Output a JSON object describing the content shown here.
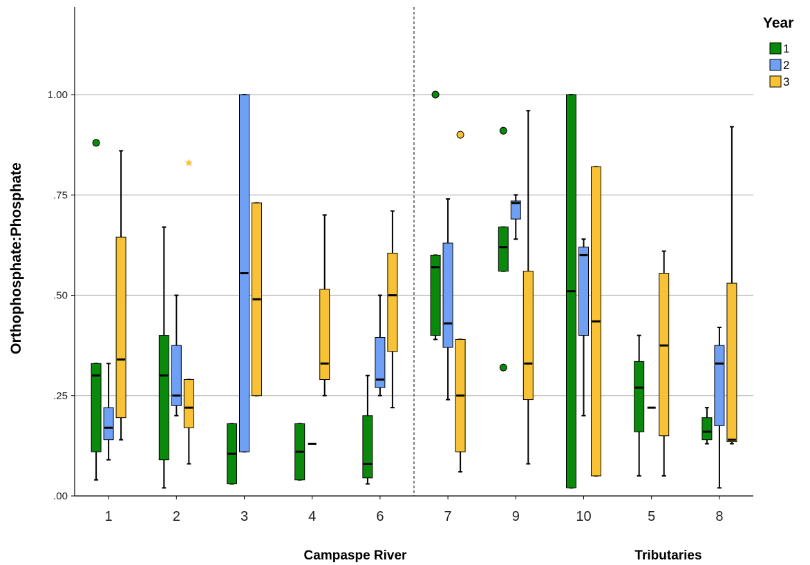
{
  "chart_data": {
    "type": "boxplot",
    "ylabel": "Orthophosphate:Phosphate",
    "ylim": [
      0,
      1.2
    ],
    "yticks": [
      0,
      0.25,
      0.5,
      0.75,
      1.0
    ],
    "ytick_labels": [
      ".00",
      ".25",
      ".50",
      ".75",
      "1.00"
    ],
    "grid": "horizontal",
    "categories": [
      "1",
      "2",
      "3",
      "4",
      "6",
      "7",
      "9",
      "10",
      "5",
      "8"
    ],
    "groups": [
      {
        "label": "Campaspe River",
        "categories": [
          "1",
          "2",
          "3",
          "4",
          "6"
        ]
      },
      {
        "label": "Tributaries",
        "categories": [
          "7",
          "9",
          "10",
          "5",
          "8"
        ]
      }
    ],
    "legend": {
      "title": "Year",
      "position": "top-right",
      "entries": [
        "1",
        "2",
        "3"
      ]
    },
    "colors": {
      "1": "#0a8a0a",
      "2": "#6fa0f5",
      "3": "#f7c236"
    },
    "series": [
      {
        "name": "1",
        "boxes": [
          {
            "category": "1",
            "whislo": 0.04,
            "q1": 0.11,
            "med": 0.3,
            "q3": 0.33,
            "whishi": 0.33,
            "outliers": [
              0.88
            ],
            "extremes": []
          },
          {
            "category": "2",
            "whislo": 0.02,
            "q1": 0.09,
            "med": 0.3,
            "q3": 0.4,
            "whishi": 0.67,
            "outliers": [],
            "extremes": []
          },
          {
            "category": "3",
            "whislo": 0.03,
            "q1": 0.03,
            "med": 0.105,
            "q3": 0.18,
            "whishi": 0.18,
            "outliers": [],
            "extremes": []
          },
          {
            "category": "4",
            "whislo": 0.04,
            "q1": 0.04,
            "med": 0.11,
            "q3": 0.18,
            "whishi": 0.18,
            "outliers": [],
            "extremes": []
          },
          {
            "category": "6",
            "whislo": 0.03,
            "q1": 0.045,
            "med": 0.08,
            "q3": 0.2,
            "whishi": 0.3,
            "outliers": [],
            "extremes": []
          },
          {
            "category": "7",
            "whislo": 0.39,
            "q1": 0.4,
            "med": 0.57,
            "q3": 0.6,
            "whishi": 0.6,
            "outliers": [
              1.0
            ],
            "extremes": []
          },
          {
            "category": "9",
            "whislo": 0.56,
            "q1": 0.56,
            "med": 0.62,
            "q3": 0.67,
            "whishi": 0.67,
            "outliers": [
              0.91,
              0.32
            ],
            "extremes": []
          },
          {
            "category": "10",
            "whislo": 0.02,
            "q1": 0.02,
            "med": 0.51,
            "q3": 1.0,
            "whishi": 1.0,
            "outliers": [],
            "extremes": []
          },
          {
            "category": "5",
            "whislo": 0.05,
            "q1": 0.16,
            "med": 0.27,
            "q3": 0.335,
            "whishi": 0.4,
            "outliers": [],
            "extremes": []
          },
          {
            "category": "8",
            "whislo": 0.13,
            "q1": 0.14,
            "med": 0.16,
            "q3": 0.195,
            "whishi": 0.22,
            "outliers": [],
            "extremes": []
          }
        ]
      },
      {
        "name": "2",
        "boxes": [
          {
            "category": "1",
            "whislo": 0.09,
            "q1": 0.14,
            "med": 0.17,
            "q3": 0.22,
            "whishi": 0.33,
            "outliers": [],
            "extremes": []
          },
          {
            "category": "2",
            "whislo": 0.2,
            "q1": 0.225,
            "med": 0.25,
            "q3": 0.375,
            "whishi": 0.5,
            "outliers": [],
            "extremes": []
          },
          {
            "category": "3",
            "whislo": 0.11,
            "q1": 0.11,
            "med": 0.555,
            "q3": 1.0,
            "whishi": 1.0,
            "outliers": [],
            "extremes": []
          },
          {
            "category": "4",
            "whislo": 0.13,
            "q1": 0.13,
            "med": 0.13,
            "q3": 0.13,
            "whishi": 0.13,
            "outliers": [],
            "extremes": []
          },
          {
            "category": "6",
            "whislo": 0.25,
            "q1": 0.27,
            "med": 0.29,
            "q3": 0.395,
            "whishi": 0.5,
            "outliers": [],
            "extremes": []
          },
          {
            "category": "7",
            "whislo": 0.24,
            "q1": 0.37,
            "med": 0.43,
            "q3": 0.63,
            "whishi": 0.74,
            "outliers": [],
            "extremes": []
          },
          {
            "category": "9",
            "whislo": 0.64,
            "q1": 0.69,
            "med": 0.73,
            "q3": 0.735,
            "whishi": 0.75,
            "outliers": [],
            "extremes": []
          },
          {
            "category": "10",
            "whislo": 0.2,
            "q1": 0.4,
            "med": 0.6,
            "q3": 0.62,
            "whishi": 0.64,
            "outliers": [],
            "extremes": []
          },
          {
            "category": "5",
            "whislo": 0.22,
            "q1": 0.22,
            "med": 0.22,
            "q3": 0.22,
            "whishi": 0.22,
            "outliers": [],
            "extremes": []
          },
          {
            "category": "8",
            "whislo": 0.02,
            "q1": 0.175,
            "med": 0.33,
            "q3": 0.375,
            "whishi": 0.42,
            "outliers": [],
            "extremes": []
          }
        ]
      },
      {
        "name": "3",
        "boxes": [
          {
            "category": "1",
            "whislo": 0.14,
            "q1": 0.195,
            "med": 0.34,
            "q3": 0.645,
            "whishi": 0.86,
            "outliers": [],
            "extremes": []
          },
          {
            "category": "2",
            "whislo": 0.08,
            "q1": 0.17,
            "med": 0.22,
            "q3": 0.29,
            "whishi": 0.29,
            "outliers": [],
            "extremes": [
              0.83
            ]
          },
          {
            "category": "3",
            "whislo": 0.25,
            "q1": 0.25,
            "med": 0.49,
            "q3": 0.73,
            "whishi": 0.73,
            "outliers": [],
            "extremes": []
          },
          {
            "category": "4",
            "whislo": 0.25,
            "q1": 0.29,
            "med": 0.33,
            "q3": 0.515,
            "whishi": 0.7,
            "outliers": [],
            "extremes": []
          },
          {
            "category": "6",
            "whislo": 0.22,
            "q1": 0.36,
            "med": 0.5,
            "q3": 0.605,
            "whishi": 0.71,
            "outliers": [],
            "extremes": []
          },
          {
            "category": "7",
            "whislo": 0.06,
            "q1": 0.11,
            "med": 0.25,
            "q3": 0.39,
            "whishi": 0.39,
            "outliers": [
              0.9
            ],
            "extremes": []
          },
          {
            "category": "9",
            "whislo": 0.08,
            "q1": 0.24,
            "med": 0.33,
            "q3": 0.56,
            "whishi": 0.96,
            "outliers": [],
            "extremes": []
          },
          {
            "category": "10",
            "whislo": 0.05,
            "q1": 0.05,
            "med": 0.435,
            "q3": 0.82,
            "whishi": 0.82,
            "outliers": [],
            "extremes": []
          },
          {
            "category": "5",
            "whislo": 0.05,
            "q1": 0.15,
            "med": 0.375,
            "q3": 0.555,
            "whishi": 0.61,
            "outliers": [],
            "extremes": []
          },
          {
            "category": "8",
            "whislo": 0.13,
            "q1": 0.135,
            "med": 0.14,
            "q3": 0.53,
            "whishi": 0.92,
            "outliers": [],
            "extremes": []
          }
        ]
      }
    ]
  }
}
